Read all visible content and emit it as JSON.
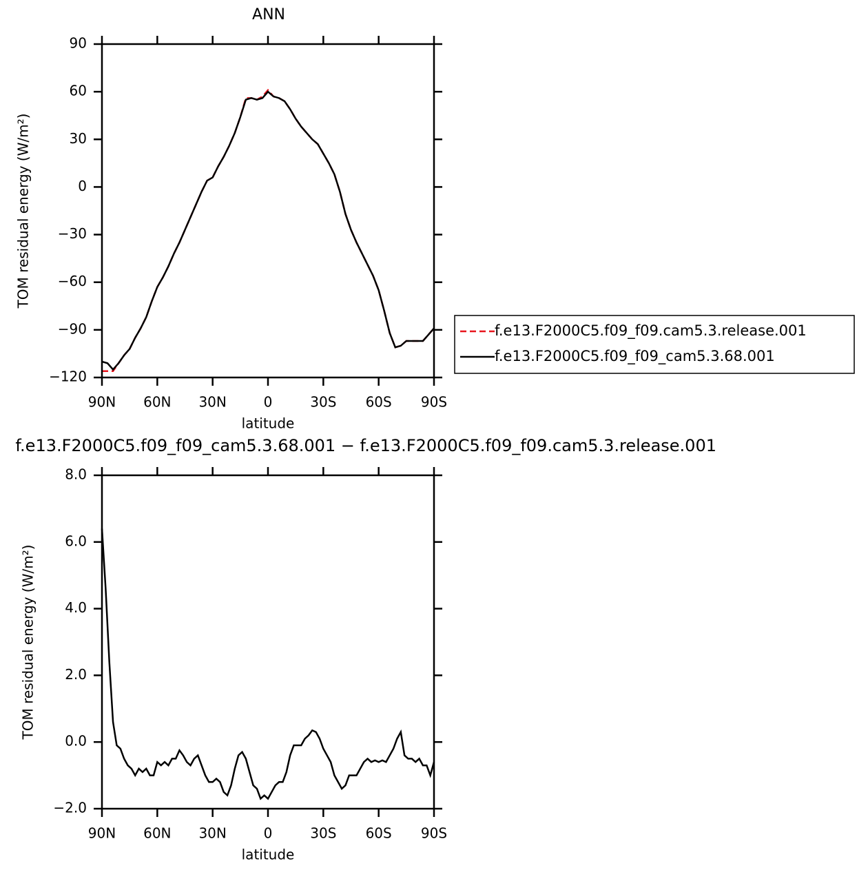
{
  "chart_data": [
    {
      "type": "line",
      "title": "ANN",
      "xlabel": "latitude",
      "ylabel": "TOM residual energy (W/m²)",
      "x": [
        90,
        87,
        84,
        81,
        78,
        75,
        72,
        69,
        66,
        63,
        60,
        57,
        54,
        51,
        48,
        45,
        42,
        39,
        36,
        33,
        30,
        27,
        24,
        21,
        18,
        15,
        12,
        9,
        6,
        3,
        0,
        -3,
        -6,
        -9,
        -12,
        -15,
        -18,
        -21,
        -24,
        -27,
        -30,
        -33,
        -36,
        -39,
        -42,
        -45,
        -48,
        -51,
        -54,
        -57,
        -60,
        -63,
        -66,
        -69,
        -72,
        -75,
        -78,
        -81,
        -84,
        -87,
        -90
      ],
      "series": [
        {
          "name": "f.e13.F2000C5.f09_f09.cam5.3.release.001",
          "color": "#e8141c",
          "line_style": "dashed",
          "values": [
            -116,
            -116,
            -116,
            -111,
            -106,
            -102,
            -95,
            -89,
            -82,
            -72,
            -63,
            -57,
            -50,
            -42,
            -35,
            -27,
            -19,
            -11,
            -3,
            4,
            6,
            13,
            19,
            26,
            34,
            44,
            56,
            56,
            55,
            57,
            61,
            57,
            56,
            54,
            49,
            43,
            38,
            34,
            30,
            27,
            21,
            15,
            8,
            -3,
            -17,
            -27,
            -35,
            -42,
            -49,
            -56,
            -65,
            -78,
            -92,
            -101,
            -100,
            -97,
            -97,
            -97,
            -97,
            -93,
            -89
          ]
        },
        {
          "name": "f.e13.F2000C5.f09_f09_cam5.3.68.001",
          "color": "#000000",
          "line_style": "solid",
          "values": [
            -110,
            -111,
            -115,
            -111,
            -106,
            -102,
            -95,
            -89,
            -82,
            -72,
            -63,
            -57,
            -50,
            -42,
            -35,
            -27,
            -19,
            -11,
            -3,
            4,
            6,
            13,
            19,
            26,
            34,
            44,
            55,
            56,
            55,
            56,
            60,
            57,
            56,
            54,
            49,
            43,
            38,
            34,
            30,
            27,
            21,
            15,
            8,
            -3,
            -17,
            -27,
            -35,
            -42,
            -49,
            -56,
            -65,
            -78,
            -92,
            -101,
            -100,
            -97,
            -97,
            -97,
            -97,
            -93,
            -89
          ]
        }
      ],
      "xlim": [
        90,
        -90
      ],
      "xticks": [
        {
          "value": 90,
          "label": "90N"
        },
        {
          "value": 60,
          "label": "60N"
        },
        {
          "value": 30,
          "label": "30N"
        },
        0,
        {
          "value": -30,
          "label": "30S"
        },
        {
          "value": -60,
          "label": "60S"
        },
        {
          "value": -90,
          "label": "90S"
        }
      ],
      "ylim": [
        -120,
        90
      ],
      "yticks": [
        {
          "value": -120,
          "label": "−120"
        },
        {
          "value": -90,
          "label": "−90"
        },
        {
          "value": -60,
          "label": "−60"
        },
        {
          "value": -30,
          "label": "−30"
        },
        0,
        30,
        60,
        90
      ],
      "legend": "outside right"
    },
    {
      "type": "line",
      "title": "f.e13.F2000C5.f09_f09_cam5.3.68.001 − f.e13.F2000C5.f09_f09.cam5.3.release.001",
      "xlabel": "latitude",
      "ylabel": "TOM residual energy (W/m²)",
      "x": [
        90,
        88,
        86,
        84,
        82,
        80,
        78,
        76,
        74,
        72,
        70,
        68,
        66,
        64,
        62,
        60,
        58,
        56,
        54,
        52,
        50,
        48,
        46,
        44,
        42,
        40,
        38,
        36,
        34,
        32,
        30,
        28,
        26,
        24,
        22,
        20,
        18,
        16,
        14,
        12,
        10,
        8,
        6,
        4,
        2,
        0,
        -2,
        -4,
        -6,
        -8,
        -10,
        -12,
        -14,
        -16,
        -18,
        -20,
        -22,
        -24,
        -26,
        -28,
        -30,
        -32,
        -34,
        -36,
        -38,
        -40,
        -42,
        -44,
        -46,
        -48,
        -50,
        -52,
        -54,
        -56,
        -58,
        -60,
        -62,
        -64,
        -66,
        -68,
        -70,
        -72,
        -74,
        -76,
        -78,
        -80,
        -82,
        -84,
        -86,
        -88,
        -90
      ],
      "series": [
        {
          "color": "#000000",
          "line_style": "solid",
          "values": [
            6.4,
            4.6,
            2.4,
            0.6,
            -0.1,
            -0.2,
            -0.5,
            -0.7,
            -0.8,
            -1.0,
            -0.8,
            -0.9,
            -0.8,
            -1.0,
            -1.0,
            -0.6,
            -0.7,
            -0.6,
            -0.7,
            -0.5,
            -0.5,
            -0.25,
            -0.4,
            -0.6,
            -0.7,
            -0.5,
            -0.4,
            -0.7,
            -1.0,
            -1.2,
            -1.2,
            -1.1,
            -1.2,
            -1.5,
            -1.6,
            -1.3,
            -0.8,
            -0.4,
            -0.3,
            -0.5,
            -0.9,
            -1.3,
            -1.4,
            -1.7,
            -1.6,
            -1.7,
            -1.5,
            -1.3,
            -1.2,
            -1.2,
            -0.9,
            -0.4,
            -0.1,
            -0.1,
            -0.1,
            0.1,
            0.2,
            0.35,
            0.3,
            0.1,
            -0.2,
            -0.4,
            -0.6,
            -1.0,
            -1.2,
            -1.4,
            -1.3,
            -1.0,
            -1.0,
            -1.0,
            -0.8,
            -0.6,
            -0.5,
            -0.6,
            -0.55,
            -0.6,
            -0.55,
            -0.6,
            -0.4,
            -0.2,
            0.1,
            0.3,
            -0.4,
            -0.5,
            -0.5,
            -0.6,
            -0.5,
            -0.7,
            -0.7,
            -1.0,
            -0.6
          ]
        }
      ],
      "xlim": [
        90,
        -90
      ],
      "xticks": [
        {
          "value": 90,
          "label": "90N"
        },
        {
          "value": 60,
          "label": "60N"
        },
        {
          "value": 30,
          "label": "30N"
        },
        0,
        {
          "value": -30,
          "label": "30S"
        },
        {
          "value": -60,
          "label": "60S"
        },
        {
          "value": -90,
          "label": "90S"
        }
      ],
      "ylim": [
        -2,
        8
      ],
      "yticks": [
        {
          "value": -2,
          "label": "−2.0"
        },
        {
          "value": 0,
          "label": "0.0"
        },
        {
          "value": 2,
          "label": "2.0"
        },
        {
          "value": 4,
          "label": "4.0"
        },
        {
          "value": 6,
          "label": "6.0"
        },
        {
          "value": 8,
          "label": "8.0"
        }
      ]
    }
  ]
}
